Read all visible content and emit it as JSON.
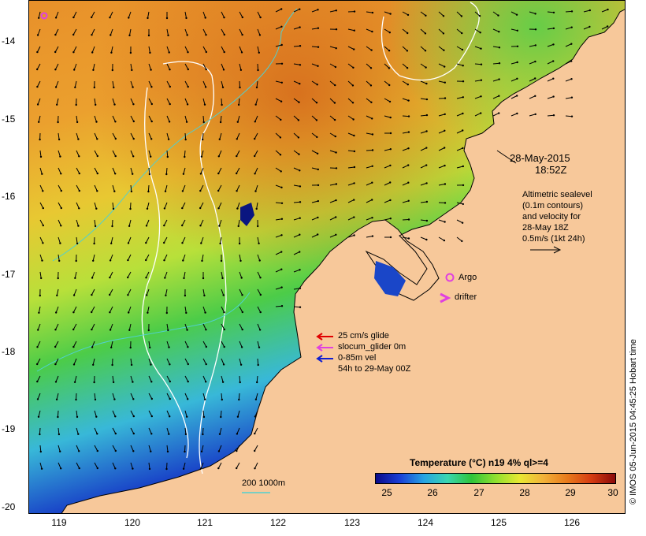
{
  "map": {
    "y_axis_labels": [
      "-14",
      "-15",
      "-16",
      "-17",
      "-18",
      "-19",
      "-20"
    ],
    "x_axis_labels": [
      "119",
      "120",
      "121",
      "122",
      "123",
      "124",
      "125",
      "126"
    ],
    "date_line1": "28-May-2015",
    "date_line2": "18:52Z",
    "altimetry_note": [
      "Altimetric sealevel",
      "(0.1m contours)",
      "and velocity for",
      "28-May 18Z",
      "0.5m/s (1kt 24h)"
    ],
    "argo_label": "Argo",
    "drifter_label": "drifter",
    "legend": {
      "glide": "25 cm/s glide",
      "slocum": "slocum_glider 0m",
      "vel": "0-85m vel",
      "vel_period": "54h to 29-May 00Z"
    },
    "scale_label": "200  1000m",
    "credit": "© IMOS 05-Jun-2015 04:45:25 Hobart time",
    "colorbar_title": "Temperature (°C) n19 4% ql>=4",
    "colorbar_ticks": [
      "25",
      "26",
      "27",
      "28",
      "29",
      "30"
    ]
  },
  "colors": {
    "land": "#f7c89a",
    "glide_arrow": "#e00000",
    "slocum_arrow": "#e040e0",
    "vel_arrow": "#1020d0",
    "argo": "#e040e0",
    "drifter": "#e040e0",
    "contour_white": "#ffffff",
    "bathymetry": "#50d0d0"
  }
}
